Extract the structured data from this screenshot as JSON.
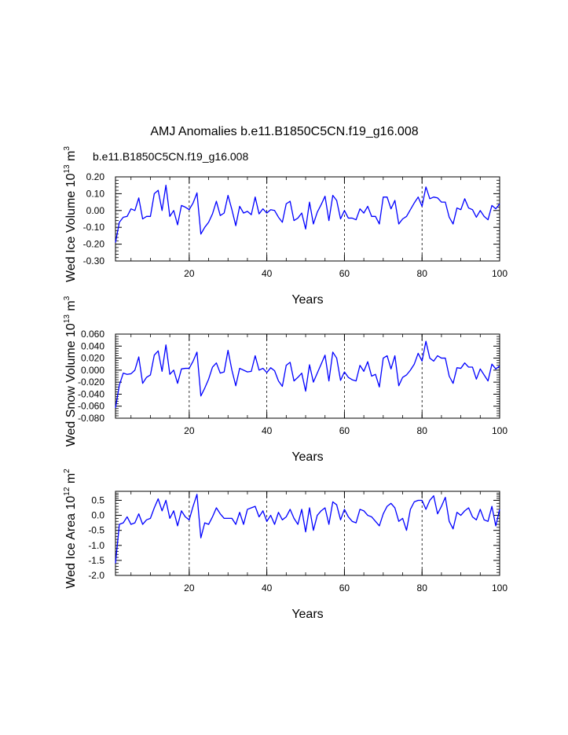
{
  "figure": {
    "title": "AMJ Anomalies b.e11.B1850C5CN.f19_g16.008",
    "case_label": "b.e11.B1850C5CN.f19_g16.008",
    "case_color": "#0000ff",
    "line_color": "#0000ff"
  },
  "chart_data": [
    {
      "type": "line",
      "xlabel": "Years",
      "ylabel_main": "Wed Ice Volume 10",
      "ylabel_exp": "13",
      "ylabel_unit": " m",
      "ylabel_unit_exp": "3",
      "xlim": [
        1,
        100
      ],
      "ylim": [
        -0.3,
        0.2
      ],
      "yticks": [
        -0.3,
        -0.2,
        -0.1,
        0.0,
        0.1,
        0.2
      ],
      "ytick_labels": [
        "-0.30",
        "-0.20",
        "-0.10",
        "0.00",
        "0.10",
        "0.20"
      ],
      "xticks": [
        20,
        40,
        60,
        80,
        100
      ],
      "xtick_labels": [
        "20",
        "40",
        "60",
        "80",
        "100"
      ],
      "grid_x": [
        20,
        40,
        60,
        80
      ],
      "series": [
        {
          "name": "Wed Ice Volume",
          "values": [
            -0.19,
            -0.07,
            -0.04,
            -0.035,
            0.01,
            0.0,
            0.075,
            -0.05,
            -0.035,
            -0.035,
            0.1,
            0.12,
            0.0,
            0.15,
            -0.035,
            0.0,
            -0.085,
            0.03,
            0.02,
            0.005,
            0.045,
            0.105,
            -0.14,
            -0.1,
            -0.07,
            -0.02,
            0.055,
            -0.03,
            -0.015,
            0.09,
            0.005,
            -0.09,
            0.025,
            -0.015,
            -0.005,
            -0.025,
            0.08,
            -0.02,
            0.01,
            -0.015,
            0.005,
            0.0,
            -0.04,
            -0.07,
            0.04,
            0.055,
            -0.06,
            -0.045,
            -0.015,
            -0.11,
            0.05,
            -0.08,
            -0.01,
            0.035,
            0.085,
            -0.06,
            0.09,
            0.06,
            -0.05,
            0.0,
            -0.045,
            -0.045,
            -0.055,
            0.01,
            -0.015,
            0.025,
            -0.035,
            -0.035,
            -0.08,
            0.08,
            0.08,
            0.01,
            0.06,
            -0.08,
            -0.05,
            -0.035,
            0.005,
            0.045,
            0.08,
            0.025,
            0.14,
            0.07,
            0.08,
            0.075,
            0.05,
            0.05,
            -0.04,
            -0.08,
            0.015,
            0.005,
            0.07,
            0.015,
            0.005,
            -0.04,
            0.0,
            -0.035,
            -0.055,
            0.03,
            0.01,
            0.04
          ]
        }
      ]
    },
    {
      "type": "line",
      "xlabel": "Years",
      "ylabel_main": "Wed Snow Volume 10",
      "ylabel_exp": "13",
      "ylabel_unit": " m",
      "ylabel_unit_exp": "3",
      "xlim": [
        1,
        100
      ],
      "ylim": [
        -0.08,
        0.06
      ],
      "yticks": [
        -0.08,
        -0.06,
        -0.04,
        -0.02,
        0.0,
        0.02,
        0.04,
        0.06
      ],
      "ytick_labels": [
        "-0.080",
        "-0.060",
        "-0.040",
        "-0.020",
        "0.000",
        "0.020",
        "0.040",
        "0.060"
      ],
      "xticks": [
        20,
        40,
        60,
        80,
        100
      ],
      "xtick_labels": [
        "20",
        "40",
        "60",
        "80",
        "100"
      ],
      "grid_x": [
        20,
        40,
        60,
        80
      ],
      "series": [
        {
          "name": "Wed Snow Volume",
          "values": [
            -0.063,
            -0.025,
            -0.005,
            -0.007,
            -0.006,
            0.0,
            0.022,
            -0.022,
            -0.012,
            -0.008,
            0.025,
            0.032,
            -0.002,
            0.042,
            -0.007,
            0.0,
            -0.022,
            0.002,
            0.003,
            0.003,
            0.015,
            0.03,
            -0.043,
            -0.03,
            -0.015,
            0.005,
            0.012,
            -0.005,
            -0.003,
            0.033,
            0.0,
            -0.026,
            0.003,
            0.0,
            -0.003,
            -0.002,
            0.024,
            0.0,
            0.003,
            -0.004,
            0.004,
            -0.001,
            -0.018,
            -0.027,
            0.008,
            0.013,
            -0.018,
            -0.012,
            -0.005,
            -0.035,
            0.009,
            -0.02,
            -0.005,
            0.01,
            0.025,
            -0.018,
            0.03,
            0.02,
            -0.017,
            -0.003,
            -0.012,
            -0.016,
            -0.018,
            0.008,
            -0.002,
            0.014,
            -0.01,
            -0.007,
            -0.028,
            0.02,
            0.024,
            0.002,
            0.024,
            -0.026,
            -0.012,
            -0.008,
            0.0,
            0.01,
            0.028,
            0.015,
            0.048,
            0.02,
            0.015,
            0.024,
            0.02,
            0.02,
            -0.01,
            -0.022,
            0.004,
            0.003,
            0.012,
            0.005,
            0.005,
            -0.015,
            0.002,
            -0.008,
            -0.018,
            0.01,
            0.002,
            0.007
          ]
        }
      ]
    },
    {
      "type": "line",
      "xlabel": "Years",
      "ylabel_main": "Wed Ice Area 10",
      "ylabel_exp": "12",
      "ylabel_unit": " m",
      "ylabel_unit_exp": "2",
      "xlim": [
        1,
        100
      ],
      "ylim": [
        -2.0,
        0.8
      ],
      "yticks": [
        -2.0,
        -1.5,
        -1.0,
        -0.5,
        0.0,
        0.5
      ],
      "ytick_labels": [
        "-2.0",
        "-1.5",
        "-1.0",
        "-0.5",
        "0.0",
        "0.5"
      ],
      "xticks": [
        20,
        40,
        60,
        80,
        100
      ],
      "xtick_labels": [
        "20",
        "40",
        "60",
        "80",
        "100"
      ],
      "grid_x": [
        20,
        40,
        60,
        80
      ],
      "series": [
        {
          "name": "Wed Ice Area",
          "values": [
            -1.6,
            -0.3,
            -0.25,
            -0.05,
            -0.3,
            -0.25,
            0.05,
            -0.3,
            -0.15,
            -0.1,
            0.25,
            0.55,
            0.15,
            0.5,
            -0.1,
            0.15,
            -0.35,
            0.15,
            -0.05,
            -0.15,
            0.3,
            0.7,
            -0.75,
            -0.25,
            -0.3,
            -0.05,
            0.25,
            0.05,
            -0.1,
            -0.1,
            -0.1,
            -0.3,
            0.1,
            -0.3,
            0.2,
            0.25,
            0.3,
            -0.05,
            0.15,
            -0.2,
            0.0,
            -0.3,
            0.1,
            -0.15,
            -0.05,
            0.2,
            -0.1,
            -0.3,
            0.2,
            -0.55,
            0.25,
            -0.5,
            0.0,
            0.15,
            0.25,
            -0.3,
            0.45,
            0.35,
            -0.15,
            0.2,
            -0.05,
            -0.2,
            -0.25,
            0.2,
            0.15,
            0.0,
            -0.05,
            -0.2,
            -0.35,
            0.05,
            0.3,
            0.4,
            0.25,
            -0.2,
            -0.1,
            -0.5,
            0.2,
            0.45,
            0.5,
            0.5,
            0.2,
            0.5,
            0.65,
            0.05,
            0.3,
            0.6,
            -0.2,
            -0.45,
            0.1,
            0.0,
            0.15,
            0.25,
            -0.05,
            -0.15,
            0.2,
            -0.15,
            -0.2,
            0.3,
            -0.35,
            0.2
          ]
        }
      ]
    }
  ]
}
